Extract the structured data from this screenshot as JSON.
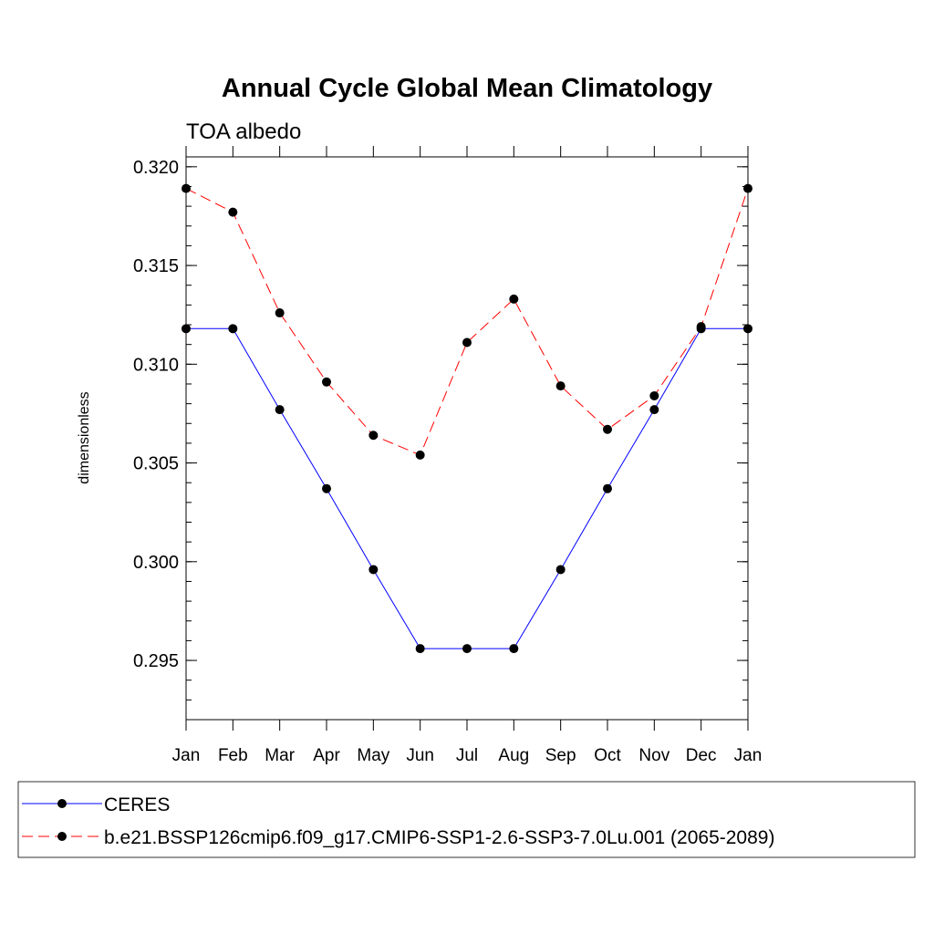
{
  "chart_data": {
    "type": "line",
    "title": "Annual Cycle Global Mean Climatology",
    "subtitle": "TOA albedo",
    "xlabel": "",
    "ylabel": "dimensionless",
    "categories": [
      "Jan",
      "Feb",
      "Mar",
      "Apr",
      "May",
      "Jun",
      "Jul",
      "Aug",
      "Sep",
      "Oct",
      "Nov",
      "Dec",
      "Jan"
    ],
    "ylim": [
      0.292,
      0.3205
    ],
    "yticks": [
      "0.295",
      "0.300",
      "0.305",
      "0.310",
      "0.315",
      "0.320"
    ],
    "ytick_values": [
      0.295,
      0.3,
      0.305,
      0.31,
      0.315,
      0.32
    ],
    "minor_ytick_step": 0.001,
    "series": [
      {
        "name": "CERES",
        "color": "#0000ff",
        "dash": "solid",
        "values": [
          0.3118,
          0.3118,
          0.3077,
          0.3037,
          0.2996,
          0.2956,
          0.2956,
          0.2956,
          0.2996,
          0.3037,
          0.3077,
          0.3118,
          0.3118
        ]
      },
      {
        "name": "b.e21.BSSP126cmip6.f09_g17.CMIP6-SSP1-2.6-SSP3-7.0Lu.001 (2065-2089)",
        "color": "#ff0000",
        "dash": "dashed",
        "values": [
          0.3189,
          0.3177,
          0.3126,
          0.3091,
          0.3064,
          0.3054,
          0.3111,
          0.3133,
          0.3089,
          0.3067,
          0.3084,
          0.3119,
          0.3189
        ]
      }
    ],
    "marker_color": "#000000",
    "legend_position": "bottom"
  }
}
